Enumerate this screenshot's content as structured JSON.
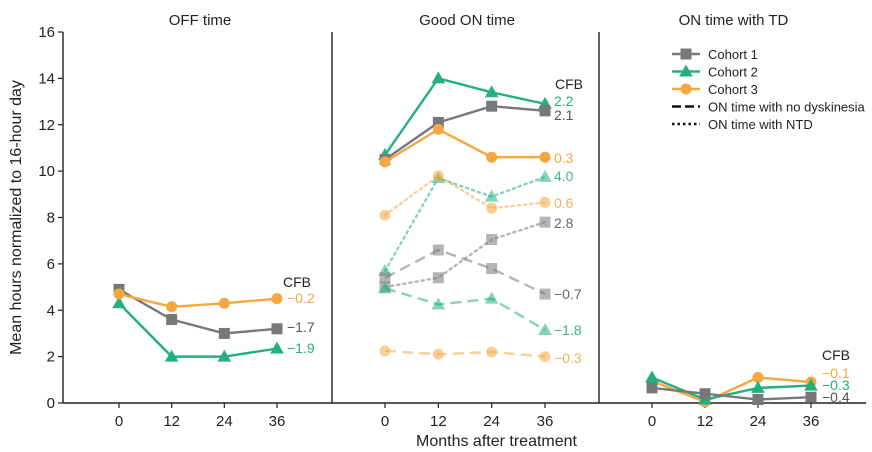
{
  "chart_data": {
    "type": "line",
    "ylabel": "Mean hours normalized to 16-hour day",
    "xlabel": "Months after treatment",
    "ylim": [
      0,
      16
    ],
    "yticks": [
      0,
      2,
      4,
      6,
      8,
      10,
      12,
      14,
      16
    ],
    "x": [
      0,
      12,
      24,
      36
    ],
    "cfb_label": "CFB",
    "colors": {
      "Cohort 1": "#77787b",
      "Cohort 2": "#23b07d",
      "Cohort 3": "#f5a742"
    },
    "markers": {
      "Cohort 1": "square",
      "Cohort 2": "triangle",
      "Cohort 3": "circle"
    },
    "legend": {
      "placement": "top-right",
      "entries": [
        {
          "label": "Cohort 1",
          "kind": "cohort",
          "cohort": "Cohort 1"
        },
        {
          "label": "Cohort 2",
          "kind": "cohort",
          "cohort": "Cohort 2"
        },
        {
          "label": "Cohort 3",
          "kind": "cohort",
          "cohort": "Cohort 3"
        },
        {
          "label": "ON time with no dyskinesia",
          "kind": "dash"
        },
        {
          "label": "ON time with NTD",
          "kind": "dot"
        }
      ]
    },
    "panels": [
      {
        "title": "OFF time",
        "series": [
          {
            "cohort": "Cohort 1",
            "style": "solid",
            "values": [
              4.9,
              3.6,
              3.0,
              3.2
            ],
            "cfb": "−1.7"
          },
          {
            "cohort": "Cohort 2",
            "style": "solid",
            "values": [
              4.3,
              2.0,
              2.0,
              2.35
            ],
            "cfb": "−1.9"
          },
          {
            "cohort": "Cohort 3",
            "style": "solid",
            "values": [
              4.7,
              4.15,
              4.3,
              4.5
            ],
            "cfb": "−0.2"
          }
        ]
      },
      {
        "title": "Good ON time",
        "series": [
          {
            "cohort": "Cohort 2",
            "style": "solid",
            "values": [
              10.7,
              14.0,
              13.4,
              12.9
            ],
            "cfb": "2.2"
          },
          {
            "cohort": "Cohort 1",
            "style": "solid",
            "values": [
              10.5,
              12.1,
              12.8,
              12.6
            ],
            "cfb": "2.1"
          },
          {
            "cohort": "Cohort 3",
            "style": "solid",
            "values": [
              10.4,
              11.8,
              10.6,
              10.6
            ],
            "cfb": "0.3"
          },
          {
            "cohort": "Cohort 2",
            "style": "dot",
            "values": [
              5.7,
              9.7,
              8.9,
              9.75
            ],
            "cfb": "4.0"
          },
          {
            "cohort": "Cohort 3",
            "style": "dot",
            "values": [
              8.1,
              9.8,
              8.4,
              8.65
            ],
            "cfb": "0.6"
          },
          {
            "cohort": "Cohort 1",
            "style": "dot",
            "values": [
              5.0,
              5.4,
              7.05,
              7.8
            ],
            "cfb": "2.8"
          },
          {
            "cohort": "Cohort 1",
            "style": "dash",
            "values": [
              5.4,
              6.6,
              5.8,
              4.7
            ],
            "cfb": "−0.7"
          },
          {
            "cohort": "Cohort 2",
            "style": "dash",
            "values": [
              4.95,
              4.25,
              4.5,
              3.15
            ],
            "cfb": "−1.8"
          },
          {
            "cohort": "Cohort 3",
            "style": "dash",
            "values": [
              2.25,
              2.1,
              2.2,
              2.0
            ],
            "cfb": "−0.3"
          }
        ]
      },
      {
        "title": "ON time with TD",
        "series": [
          {
            "cohort": "Cohort 3",
            "style": "solid",
            "values": [
              0.95,
              0.05,
              1.1,
              0.9
            ],
            "cfb": "−0.1"
          },
          {
            "cohort": "Cohort 2",
            "style": "solid",
            "values": [
              1.1,
              0.15,
              0.65,
              0.75
            ],
            "cfb": "−0.3"
          },
          {
            "cohort": "Cohort 1",
            "style": "solid",
            "values": [
              0.65,
              0.4,
              0.15,
              0.25
            ],
            "cfb": "−0.4"
          }
        ]
      }
    ]
  }
}
